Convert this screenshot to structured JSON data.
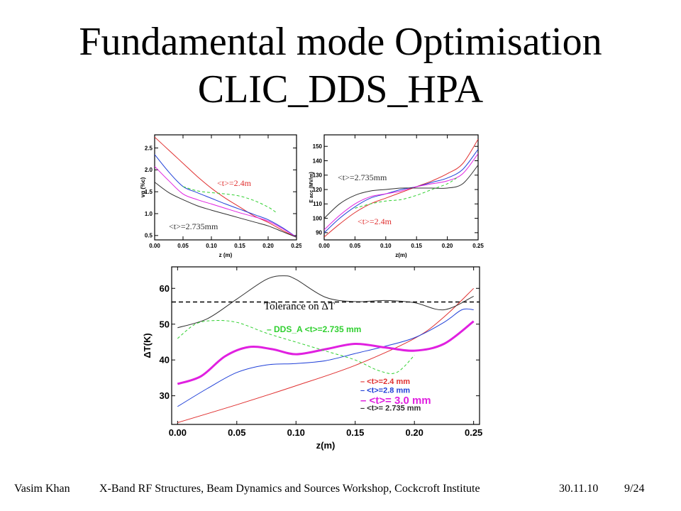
{
  "slide": {
    "title_line1": "Fundamental mode Optimisation",
    "title_line2": "CLIC_DDS_HPA",
    "footer": {
      "author": "Vasim Khan",
      "event": "X-Band RF Structures, Beam Dynamics and Sources Workshop, Cockcroft Institute",
      "date": "30.11.10",
      "page": "9/24"
    }
  },
  "colors": {
    "red": "#e03030",
    "blue": "#2040d8",
    "magenta": "#e020e0",
    "black": "#303030",
    "green": "#30d030"
  },
  "chart_data": [
    {
      "type": "line",
      "xlabel": "z (m)",
      "ylabel": "vg (%c)",
      "xlim": [
        0,
        0.25
      ],
      "ylim": [
        0.4,
        2.8
      ],
      "xticks": [
        "0.00",
        "0.05",
        "0.10",
        "0.15",
        "0.20",
        "0.25"
      ],
      "yticks": [
        "0.5",
        "1.0",
        "1.5",
        "2.0",
        "2.5"
      ],
      "annotations": [
        "<t>=2.4m",
        "<t>=2.735mm"
      ],
      "series": [
        {
          "color": "red",
          "dash": false,
          "x": [
            0,
            0.025,
            0.05,
            0.075,
            0.1,
            0.125,
            0.15,
            0.175,
            0.2,
            0.225,
            0.25
          ],
          "y": [
            2.75,
            2.45,
            2.15,
            1.85,
            1.58,
            1.35,
            1.15,
            0.95,
            0.8,
            0.62,
            0.46
          ]
        },
        {
          "color": "blue",
          "dash": false,
          "x": [
            0,
            0.025,
            0.05,
            0.075,
            0.1,
            0.125,
            0.15,
            0.175,
            0.2,
            0.225,
            0.25
          ],
          "y": [
            2.35,
            1.95,
            1.62,
            1.48,
            1.35,
            1.22,
            1.1,
            0.98,
            0.86,
            0.68,
            0.46
          ]
        },
        {
          "color": "magenta",
          "dash": false,
          "x": [
            0,
            0.025,
            0.05,
            0.075,
            0.1,
            0.125,
            0.15,
            0.175,
            0.2,
            0.225,
            0.25
          ],
          "y": [
            2.08,
            1.75,
            1.45,
            1.32,
            1.22,
            1.12,
            1.02,
            0.93,
            0.83,
            0.66,
            0.46
          ]
        },
        {
          "color": "black",
          "dash": false,
          "x": [
            0,
            0.025,
            0.05,
            0.075,
            0.1,
            0.125,
            0.15,
            0.175,
            0.2,
            0.225,
            0.25
          ],
          "y": [
            1.72,
            1.48,
            1.32,
            1.18,
            1.08,
            0.99,
            0.9,
            0.81,
            0.72,
            0.59,
            0.46
          ]
        },
        {
          "color": "green",
          "dash": true,
          "x": [
            0.05,
            0.075,
            0.1,
            0.125,
            0.15,
            0.175,
            0.2,
            0.215
          ],
          "y": [
            1.62,
            1.52,
            1.48,
            1.45,
            1.4,
            1.3,
            1.15,
            1.02
          ]
        }
      ]
    },
    {
      "type": "line",
      "xlabel": "z(m)",
      "ylabel": "E acc (MV/m)",
      "xlim": [
        0,
        0.25
      ],
      "ylim": [
        85,
        158
      ],
      "xticks": [
        "0.00",
        "0.05",
        "0.10",
        "0.15",
        "0.20",
        "0.25"
      ],
      "yticks": [
        "90",
        "100",
        "110",
        "120",
        "130",
        "140",
        "150"
      ],
      "annotations": [
        "<t>=2.735mm",
        "<t>=2.4m"
      ],
      "series": [
        {
          "color": "red",
          "dash": false,
          "x": [
            0,
            0.025,
            0.05,
            0.075,
            0.1,
            0.125,
            0.15,
            0.175,
            0.2,
            0.225,
            0.25
          ],
          "y": [
            87,
            96,
            104,
            110,
            114,
            118,
            122,
            126,
            131,
            138,
            155
          ]
        },
        {
          "color": "blue",
          "dash": false,
          "x": [
            0,
            0.025,
            0.05,
            0.075,
            0.1,
            0.125,
            0.15,
            0.175,
            0.2,
            0.225,
            0.25
          ],
          "y": [
            90,
            100,
            108,
            114,
            117,
            120,
            122,
            125,
            128,
            134,
            148
          ]
        },
        {
          "color": "magenta",
          "dash": false,
          "x": [
            0,
            0.025,
            0.05,
            0.075,
            0.1,
            0.125,
            0.15,
            0.175,
            0.2,
            0.225,
            0.25
          ],
          "y": [
            92,
            102,
            110,
            115,
            117,
            119,
            122,
            124,
            126,
            131,
            145
          ]
        },
        {
          "color": "black",
          "dash": false,
          "x": [
            0,
            0.025,
            0.05,
            0.075,
            0.1,
            0.125,
            0.15,
            0.175,
            0.2,
            0.225,
            0.25
          ],
          "y": [
            100,
            110,
            116,
            119,
            120,
            121,
            121,
            121,
            121,
            124,
            137
          ]
        },
        {
          "color": "green",
          "dash": true,
          "x": [
            0.05,
            0.075,
            0.1,
            0.125,
            0.15,
            0.175,
            0.2,
            0.215
          ],
          "y": [
            107,
            110,
            112,
            113,
            116,
            120,
            124,
            128
          ]
        }
      ]
    },
    {
      "type": "line",
      "xlabel": "z(m)",
      "ylabel": "ΔT(K)",
      "xlim": [
        -0.005,
        0.255
      ],
      "ylim": [
        22,
        66
      ],
      "xticks": [
        "0.00",
        "0.05",
        "0.10",
        "0.15",
        "0.20",
        "0.25"
      ],
      "yticks": [
        "30",
        "40",
        "50",
        "60"
      ],
      "tolerance": {
        "value": 56.2,
        "label": "Tolerance on ΔT"
      },
      "annotations": [
        "DDS_A <t>=2.735 mm"
      ],
      "legend": [
        "<t>=2.4 mm",
        "<t>=2.8 mm",
        "<t>= 3.0 mm",
        "<t>= 2.735 mm"
      ],
      "series": [
        {
          "color": "red",
          "dash": false,
          "width": 1,
          "x": [
            0,
            0.05,
            0.1,
            0.15,
            0.2,
            0.225,
            0.25
          ],
          "y": [
            22.5,
            27.5,
            32.8,
            38.5,
            46,
            52,
            60
          ]
        },
        {
          "color": "blue",
          "dash": false,
          "width": 1,
          "x": [
            0,
            0.025,
            0.05,
            0.075,
            0.1,
            0.125,
            0.15,
            0.175,
            0.2,
            0.225,
            0.24,
            0.25
          ],
          "y": [
            27,
            32,
            36.5,
            38.6,
            39,
            39.8,
            41.8,
            43.8,
            46.2,
            50.5,
            54,
            54
          ]
        },
        {
          "color": "magenta",
          "dash": false,
          "width": 3,
          "x": [
            0,
            0.02,
            0.04,
            0.06,
            0.08,
            0.1,
            0.125,
            0.15,
            0.175,
            0.2,
            0.225,
            0.25
          ],
          "y": [
            33.3,
            35.5,
            41,
            43.6,
            43,
            41.6,
            43,
            44.5,
            43.5,
            42.6,
            44.5,
            50.8
          ]
        },
        {
          "color": "black",
          "dash": false,
          "width": 1,
          "x": [
            0,
            0.025,
            0.05,
            0.075,
            0.09,
            0.1,
            0.125,
            0.15,
            0.175,
            0.2,
            0.225,
            0.25
          ],
          "y": [
            49,
            51.5,
            57,
            62.5,
            63.5,
            62.5,
            57.5,
            56.3,
            56.6,
            56,
            54,
            57.8
          ]
        },
        {
          "color": "green",
          "dash": true,
          "width": 1,
          "x": [
            0,
            0.015,
            0.03,
            0.05,
            0.075,
            0.1,
            0.125,
            0.15,
            0.17,
            0.185,
            0.2
          ],
          "y": [
            46,
            50,
            51,
            50.5,
            47.5,
            45,
            42.5,
            40,
            37,
            36.5,
            41.3
          ]
        }
      ]
    }
  ]
}
